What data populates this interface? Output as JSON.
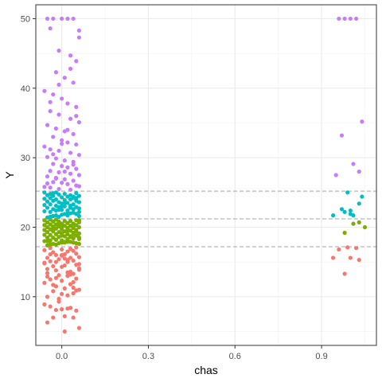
{
  "chart_data": {
    "type": "scatter",
    "title": "",
    "xlabel": "chas",
    "ylabel": "Y",
    "xlim": [
      -0.09,
      1.09
    ],
    "ylim": [
      3.0,
      52.0
    ],
    "x_ticks": [
      0.0,
      0.3,
      0.6,
      0.9
    ],
    "x_tick_labels": [
      "0.0",
      "0.3",
      "0.6",
      "0.9"
    ],
    "y_ticks": [
      10,
      20,
      30,
      40,
      50
    ],
    "y_tick_labels": [
      "10",
      "20",
      "30",
      "40",
      "50"
    ],
    "grid": true,
    "legend": "none",
    "reference_lines": [
      17.2,
      21.2,
      25.2
    ],
    "groups": [
      {
        "color": "#F8766D",
        "y_range": [
          5.0,
          17.1
        ]
      },
      {
        "color": "#7CAE00",
        "y_range": [
          17.3,
          21.1
        ]
      },
      {
        "color": "#00BFC4",
        "y_range": [
          21.3,
          25.1
        ]
      },
      {
        "color": "#C77CFF",
        "y_range": [
          25.3,
          50.0
        ]
      }
    ],
    "series": [
      {
        "x": [
          -0.05,
          -0.03,
          0.01,
          0.04,
          0.06,
          -0.02,
          0.02,
          -0.06,
          0.03,
          0.0,
          -0.04,
          0.05,
          -0.01,
          0.02,
          -0.05,
          0.04,
          -0.03,
          0.01,
          0.06,
          -0.02,
          0.03,
          -0.06,
          0.0,
          0.05,
          -0.04,
          0.02,
          -0.01,
          0.04,
          -0.05,
          0.03,
          -0.02,
          0.06,
          0.0,
          -0.03,
          0.01,
          0.05,
          -0.06,
          0.02,
          -0.04,
          0.04,
          -0.01,
          0.03,
          -0.05,
          0.06,
          0.0,
          -0.02,
          0.01,
          0.05,
          -0.03,
          0.02,
          0.04,
          -0.06,
          0.0,
          0.03,
          -0.04,
          0.05,
          0.01,
          -0.02,
          0.06,
          -0.05,
          0.02,
          0.0,
          -0.03,
          0.04,
          -0.01,
          0.05,
          0.03,
          -0.06,
          0.01,
          -0.04,
          0.02,
          0.06,
          -0.02,
          0.0,
          0.04,
          -0.05,
          0.96,
          0.98,
          1.0,
          1.02,
          1.03,
          0.94,
          0.99
        ],
        "y": [
          6.3,
          7.0,
          7.2,
          7.0,
          5.5,
          8.1,
          8.3,
          8.9,
          8.4,
          8.2,
          8.6,
          8.0,
          9.3,
          10.2,
          10.0,
          10.5,
          10.8,
          11.2,
          11.0,
          11.5,
          11.8,
          12.0,
          12.3,
          12.6,
          12.5,
          13.0,
          13.1,
          13.3,
          13.4,
          13.6,
          13.8,
          14.1,
          14.3,
          14.4,
          14.5,
          14.6,
          14.9,
          15.0,
          15.1,
          15.2,
          15.4,
          15.6,
          15.6,
          15.7,
          15.9,
          16.0,
          16.1,
          16.2,
          16.4,
          16.5,
          16.6,
          16.7,
          16.8,
          16.9,
          17.0,
          17.1,
          5.0,
          12.7,
          13.9,
          14.0,
          15.3,
          10.4,
          11.7,
          12.1,
          9.7,
          10.9,
          13.2,
          14.8,
          15.5,
          16.1,
          13.5,
          14.7,
          15.0,
          16.0,
          11.3,
          12.9,
          16.8,
          13.3,
          15.6,
          17.0,
          15.3,
          15.6,
          17.1
        ]
      },
      {
        "x": [
          -0.05,
          -0.04,
          -0.03,
          -0.02,
          -0.01,
          0.0,
          0.01,
          0.02,
          0.03,
          0.04,
          0.05,
          0.06,
          -0.06,
          -0.04,
          -0.02,
          0.0,
          0.02,
          0.04,
          0.06,
          -0.05,
          -0.03,
          -0.01,
          0.01,
          0.03,
          0.05,
          -0.06,
          -0.04,
          -0.02,
          0.0,
          0.02,
          0.04,
          0.06,
          -0.05,
          -0.03,
          -0.01,
          0.01,
          0.03,
          0.05,
          -0.06,
          -0.04,
          -0.02,
          0.0,
          0.02,
          0.04,
          0.06,
          -0.05,
          -0.03,
          -0.01,
          0.01,
          0.03,
          0.05,
          -0.06,
          -0.04,
          -0.02,
          0.0,
          0.02,
          0.04,
          0.06,
          -0.05,
          -0.03,
          -0.01,
          0.01,
          0.03,
          0.05,
          -0.06,
          -0.04,
          -0.02,
          0.0,
          0.02,
          0.04,
          0.06,
          -0.05,
          -0.03,
          -0.01,
          0.01,
          0.03,
          0.05,
          -0.06,
          -0.04,
          -0.02,
          0.0,
          0.02,
          0.04,
          0.06,
          0.98,
          1.01,
          1.03,
          1.05
        ],
        "y": [
          17.4,
          17.5,
          17.6,
          17.5,
          17.7,
          17.8,
          17.8,
          17.9,
          17.9,
          17.8,
          17.7,
          17.6,
          18.0,
          18.1,
          18.2,
          18.1,
          18.3,
          18.4,
          18.3,
          18.5,
          18.5,
          18.6,
          18.7,
          18.6,
          18.8,
          18.9,
          18.9,
          19.0,
          19.1,
          19.0,
          19.2,
          19.1,
          19.3,
          19.4,
          19.3,
          19.4,
          19.5,
          19.6,
          19.6,
          19.7,
          19.8,
          19.7,
          19.8,
          19.9,
          20.0,
          20.0,
          20.1,
          20.1,
          20.2,
          20.2,
          20.3,
          20.3,
          20.4,
          20.4,
          20.5,
          20.6,
          20.5,
          20.7,
          20.7,
          20.8,
          20.8,
          20.9,
          20.9,
          21.0,
          21.0,
          21.1,
          21.1,
          20.0,
          19.5,
          19.0,
          18.5,
          18.0,
          19.8,
          20.6,
          17.9,
          18.7,
          19.4,
          20.3,
          17.6,
          18.2,
          18.8,
          19.9,
          20.5,
          21.0,
          19.2,
          20.5,
          20.7,
          20.0
        ]
      },
      {
        "x": [
          -0.05,
          -0.04,
          -0.03,
          -0.02,
          -0.01,
          0.0,
          0.01,
          0.02,
          0.03,
          0.04,
          0.05,
          0.06,
          -0.06,
          -0.04,
          -0.02,
          0.0,
          0.02,
          0.04,
          0.06,
          -0.05,
          -0.03,
          -0.01,
          0.01,
          0.03,
          0.05,
          -0.06,
          -0.04,
          -0.02,
          0.0,
          0.02,
          0.04,
          0.06,
          -0.05,
          -0.03,
          -0.01,
          0.01,
          0.03,
          0.05,
          -0.06,
          -0.04,
          -0.02,
          0.0,
          0.02,
          0.04,
          0.06,
          -0.05,
          -0.03,
          -0.01,
          0.01,
          0.03,
          0.05,
          -0.06,
          -0.04,
          -0.02,
          0.0,
          0.02,
          0.04,
          0.06,
          -0.05,
          -0.03,
          -0.01,
          0.01,
          0.03,
          0.05,
          0.94,
          0.98,
          0.99,
          1.0,
          1.01,
          1.03,
          1.04,
          0.97,
          1.0
        ],
        "y": [
          21.4,
          21.5,
          21.6,
          21.7,
          21.5,
          21.8,
          21.9,
          21.7,
          22.0,
          22.1,
          21.9,
          22.2,
          22.3,
          22.2,
          22.4,
          22.5,
          22.4,
          22.6,
          22.7,
          22.8,
          22.6,
          22.9,
          23.0,
          23.1,
          22.9,
          23.2,
          23.3,
          23.1,
          23.4,
          23.5,
          23.3,
          23.6,
          23.7,
          23.8,
          23.6,
          23.9,
          24.0,
          23.8,
          24.1,
          24.2,
          24.0,
          24.3,
          24.4,
          24.2,
          24.5,
          24.6,
          24.5,
          24.7,
          24.8,
          24.6,
          24.9,
          25.0,
          24.8,
          25.0,
          23.0,
          22.0,
          24.4,
          21.6,
          23.7,
          24.9,
          22.5,
          23.5,
          22.8,
          24.2,
          21.7,
          22.2,
          25.0,
          21.9,
          21.7,
          23.4,
          24.4,
          22.6,
          22.4
        ]
      },
      {
        "x": [
          -0.05,
          -0.03,
          0.0,
          0.02,
          0.04,
          0.06,
          -0.04,
          -0.01,
          0.03,
          0.05,
          -0.02,
          0.01,
          0.04,
          -0.06,
          -0.03,
          0.0,
          0.02,
          0.05,
          -0.04,
          -0.01,
          0.03,
          0.06,
          -0.05,
          -0.02,
          0.01,
          0.04,
          -0.03,
          0.0,
          0.02,
          0.05,
          -0.06,
          -0.04,
          -0.01,
          0.03,
          0.06,
          -0.05,
          -0.02,
          0.01,
          0.04,
          -0.03,
          0.0,
          0.02,
          0.05,
          -0.04,
          -0.01,
          0.03,
          0.06,
          -0.05,
          -0.02,
          0.01,
          0.04,
          -0.03,
          0.0,
          0.02,
          0.05,
          -0.06,
          -0.04,
          -0.01,
          0.03,
          0.06,
          -0.05,
          -0.02,
          0.01,
          0.04,
          -0.03,
          0.0,
          0.02,
          0.05,
          -0.04,
          -0.01,
          0.03,
          0.06,
          0.96,
          0.98,
          1.0,
          1.02,
          0.97,
          1.04,
          0.95,
          1.01,
          1.03
        ],
        "y": [
          50.0,
          50.0,
          50.0,
          50.0,
          50.0,
          48.3,
          48.6,
          45.4,
          44.7,
          43.9,
          42.3,
          41.5,
          40.8,
          39.6,
          39.1,
          38.5,
          37.8,
          37.3,
          36.7,
          36.2,
          35.6,
          35.1,
          34.7,
          34.2,
          33.8,
          33.4,
          33.0,
          32.5,
          32.2,
          31.9,
          31.6,
          31.2,
          31.0,
          30.7,
          30.4,
          30.1,
          29.9,
          29.6,
          29.4,
          29.1,
          28.8,
          28.6,
          28.4,
          28.1,
          27.9,
          27.7,
          27.5,
          27.3,
          27.1,
          26.9,
          26.7,
          26.5,
          26.4,
          26.2,
          26.0,
          25.8,
          25.7,
          25.5,
          25.4,
          25.9,
          26.3,
          27.0,
          28.0,
          29.0,
          30.5,
          32.0,
          34.0,
          36.0,
          38.0,
          40.5,
          42.8,
          47.3,
          50.0,
          50.0,
          50.0,
          50.0,
          33.2,
          35.2,
          27.5,
          29.1,
          28.0
        ]
      }
    ]
  }
}
